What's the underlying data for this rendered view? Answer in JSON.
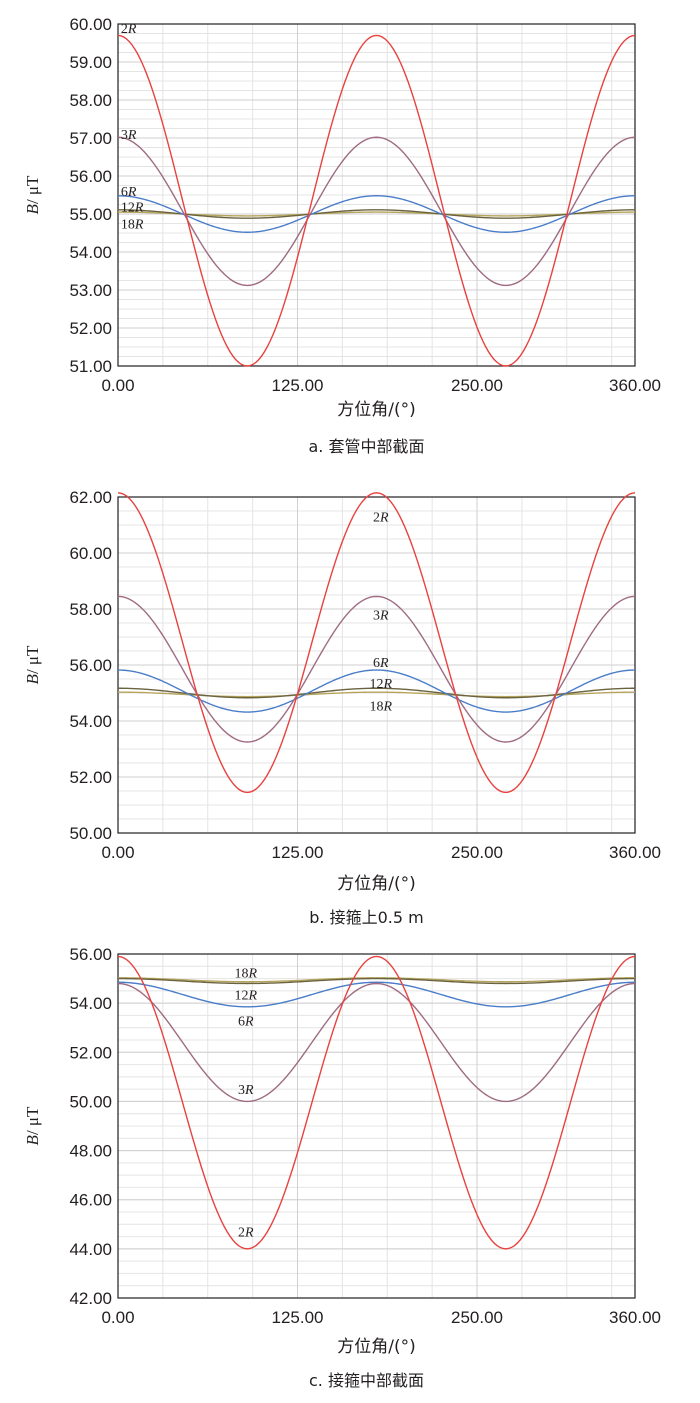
{
  "chart_data": [
    {
      "type": "line",
      "caption": "a. 套管中部截面",
      "xlabel": "方位角/(°)",
      "ylabel": "B/ μT",
      "xlim": [
        0,
        360
      ],
      "ylim": [
        51,
        60
      ],
      "xticks": [
        0,
        125,
        250,
        360
      ],
      "xtick_labels": [
        "0.00",
        "125.00",
        "250.00",
        "360.00"
      ],
      "yticks": [
        51,
        52,
        53,
        54,
        55,
        56,
        57,
        58,
        59,
        60
      ],
      "ytick_labels": [
        "51.00",
        "52.00",
        "53.00",
        "54.00",
        "55.00",
        "56.00",
        "57.00",
        "58.00",
        "59.00",
        "60.00"
      ],
      "grid": true,
      "curve_form": "B(θ) = mean + amp·cos(2θ)",
      "series": [
        {
          "name": "2R",
          "label": "2R",
          "color": "#e8423f",
          "mean": 55.35,
          "amp": 4.35,
          "label_at": [
            2,
            59.9
          ]
        },
        {
          "name": "3R",
          "label": "3R",
          "color": "#9e6b82",
          "mean": 55.07,
          "amp": 1.95,
          "label_at": [
            2,
            57.1
          ]
        },
        {
          "name": "6R",
          "label": "6R",
          "color": "#4a7dc9",
          "mean": 55.0,
          "amp": 0.48,
          "label_at": [
            2,
            55.6
          ]
        },
        {
          "name": "12R",
          "label": "12R",
          "color": "#6b6340",
          "mean": 55.0,
          "amp": 0.11,
          "label_at": [
            2,
            55.2
          ]
        },
        {
          "name": "18R",
          "label": "18R",
          "color": "#b5a55c",
          "mean": 55.0,
          "amp": 0.05,
          "label_at": [
            2,
            54.75
          ]
        }
      ]
    },
    {
      "type": "line",
      "caption": "b. 接箍上0.5 m",
      "xlabel": "方位角/(°)",
      "ylabel": "B/ μT",
      "xlim": [
        0,
        360
      ],
      "ylim": [
        50,
        62
      ],
      "xticks": [
        0,
        125,
        250,
        360
      ],
      "xtick_labels": [
        "0.00",
        "125.00",
        "250.00",
        "360.00"
      ],
      "yticks": [
        50,
        52,
        54,
        56,
        58,
        60,
        62
      ],
      "ytick_labels": [
        "50.00",
        "52.00",
        "54.00",
        "56.00",
        "58.00",
        "60.00",
        "62.00"
      ],
      "grid": true,
      "curve_form": "B(θ) = mean + amp·cos(2(θ − 180))",
      "series": [
        {
          "name": "2R",
          "label": "2R",
          "color": "#e8423f",
          "mean": 56.8,
          "amp": 5.35,
          "label_at": [
            183,
            61.3
          ]
        },
        {
          "name": "3R",
          "label": "3R",
          "color": "#9e6b82",
          "mean": 55.85,
          "amp": 2.6,
          "label_at": [
            183,
            57.8
          ]
        },
        {
          "name": "6R",
          "label": "6R",
          "color": "#4a7dc9",
          "mean": 55.07,
          "amp": 0.75,
          "label_at": [
            183,
            56.1
          ]
        },
        {
          "name": "12R",
          "label": "12R",
          "color": "#6b6340",
          "mean": 55.0,
          "amp": 0.17,
          "label_at": [
            183,
            55.35
          ]
        },
        {
          "name": "18R",
          "label": "18R",
          "color": "#b5a55c",
          "mean": 54.95,
          "amp": 0.08,
          "label_at": [
            183,
            54.55
          ]
        }
      ]
    },
    {
      "type": "line",
      "caption": "c. 接箍中部截面",
      "xlabel": "方位角/(°)",
      "ylabel": "B/ μT",
      "xlim": [
        0,
        360
      ],
      "ylim": [
        42,
        56
      ],
      "xticks": [
        0,
        125,
        250,
        360
      ],
      "xtick_labels": [
        "0.00",
        "125.00",
        "250.00",
        "360.00"
      ],
      "yticks": [
        42,
        44,
        46,
        48,
        50,
        52,
        54,
        56
      ],
      "ytick_labels": [
        "42.00",
        "44.00",
        "46.00",
        "48.00",
        "50.00",
        "52.00",
        "54.00",
        "56.00"
      ],
      "grid": true,
      "curve_form": "B(θ) = mean + amp·cos(2θ)",
      "series": [
        {
          "name": "2R",
          "label": "2R",
          "color": "#e8423f",
          "mean": 49.95,
          "amp": 5.95,
          "label_at": [
            89,
            44.7
          ]
        },
        {
          "name": "3R",
          "label": "3R",
          "color": "#9e6b82",
          "mean": 52.4,
          "amp": 2.4,
          "label_at": [
            89,
            50.5
          ]
        },
        {
          "name": "6R",
          "label": "6R",
          "color": "#4a7dc9",
          "mean": 54.35,
          "amp": 0.5,
          "label_at": [
            89,
            53.3
          ]
        },
        {
          "name": "12R",
          "label": "12R",
          "color": "#6b6340",
          "mean": 54.9,
          "amp": 0.1,
          "label_at": [
            89,
            54.35
          ]
        },
        {
          "name": "18R",
          "label": "18R",
          "color": "#b5a55c",
          "mean": 54.95,
          "amp": 0.08,
          "label_at": [
            89,
            55.25
          ]
        }
      ]
    }
  ]
}
